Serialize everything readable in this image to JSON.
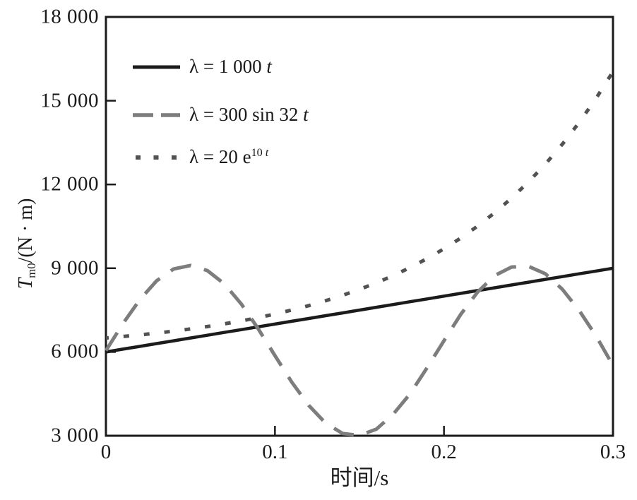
{
  "chart_data": {
    "type": "line",
    "title": "",
    "xlabel": "时间/s",
    "ylabel": "T_m0/(N · m)",
    "xlim": [
      0,
      0.3
    ],
    "ylim": [
      3000,
      18000
    ],
    "grid": false,
    "legend_position": "upper-left-inside",
    "frame": "full-box",
    "tick_direction": "in",
    "axis_color": "#1b1b1b",
    "xtick_values": [
      0,
      0.1,
      0.2,
      0.3
    ],
    "xtick_labels": [
      "0",
      "0.1",
      "0.2",
      "0.3"
    ],
    "ytick_values": [
      3000,
      6000,
      9000,
      12000,
      15000,
      18000
    ],
    "ytick_labels": [
      "3 000",
      "6 000",
      "9 000",
      "12 000",
      "15 000",
      "18 000"
    ],
    "x": [
      0,
      0.01,
      0.02,
      0.03,
      0.04,
      0.05,
      0.06,
      0.07,
      0.08,
      0.09,
      0.1,
      0.11,
      0.12,
      0.13,
      0.14,
      0.15,
      0.16,
      0.17,
      0.18,
      0.19,
      0.2,
      0.21,
      0.22,
      0.23,
      0.24,
      0.25,
      0.26,
      0.27,
      0.28,
      0.29,
      0.3
    ],
    "series": [
      {
        "name": "λ = 1 000 t",
        "style": "solid",
        "color": "#1b1b1b",
        "width": 4.5,
        "dash": null,
        "values": [
          6000,
          6100,
          6200,
          6300,
          6400,
          6500,
          6600,
          6700,
          6800,
          6900,
          7000,
          7100,
          7200,
          7300,
          7400,
          7500,
          7600,
          7700,
          7800,
          7900,
          8000,
          8100,
          8200,
          8300,
          8400,
          8500,
          8600,
          8700,
          8800,
          8900,
          9000
        ]
      },
      {
        "name": "λ = 300 sin 32 t",
        "style": "dashed",
        "color": "#7d7d7d",
        "width": 5,
        "dash": [
          30,
          19
        ],
        "values": [
          6050,
          7010,
          7871,
          8549,
          8972,
          9099,
          8916,
          8444,
          7724,
          6839,
          5872,
          4916,
          4087,
          3449,
          3081,
          3012,
          3235,
          3774,
          4506,
          5434,
          6405,
          7354,
          8153,
          8736,
          9042,
          9068,
          8800,
          8249,
          7487,
          6569,
          5518
        ]
      },
      {
        "name": "λ = 20 e^(10 t)",
        "style": "dotted",
        "color": "#525252",
        "width": 5,
        "dash": [
          8,
          21
        ],
        "values": [
          6500,
          6553,
          6611,
          6675,
          6746,
          6824,
          6911,
          7007,
          7113,
          7230,
          7359,
          7502,
          7660,
          7835,
          8028,
          8241,
          8477,
          8737,
          9025,
          9343,
          9695,
          10083,
          10513,
          10987,
          11512,
          12091,
          12732,
          13440,
          14222,
          15087,
          16043
        ]
      }
    ]
  },
  "legend": {
    "items": [
      {
        "series": "solid",
        "segments": [
          {
            "text": "λ = 1 000 ",
            "style": "normal"
          },
          {
            "text": "t",
            "style": "italic"
          }
        ]
      },
      {
        "series": "dashed",
        "segments": [
          {
            "text": "λ = 300 sin 32 ",
            "style": "normal"
          },
          {
            "text": "t",
            "style": "italic"
          }
        ]
      },
      {
        "series": "dotted",
        "segments": [
          {
            "text": "λ = 20 e",
            "style": "normal"
          },
          {
            "text": "10 ",
            "style": "sup"
          },
          {
            "text": "t",
            "style": "sup italic"
          }
        ]
      }
    ]
  },
  "ylabel_segments": [
    {
      "text": "T",
      "style": "italic"
    },
    {
      "text": "m0",
      "style": "sub"
    },
    {
      "text": "/(N · m)",
      "style": "normal"
    }
  ]
}
